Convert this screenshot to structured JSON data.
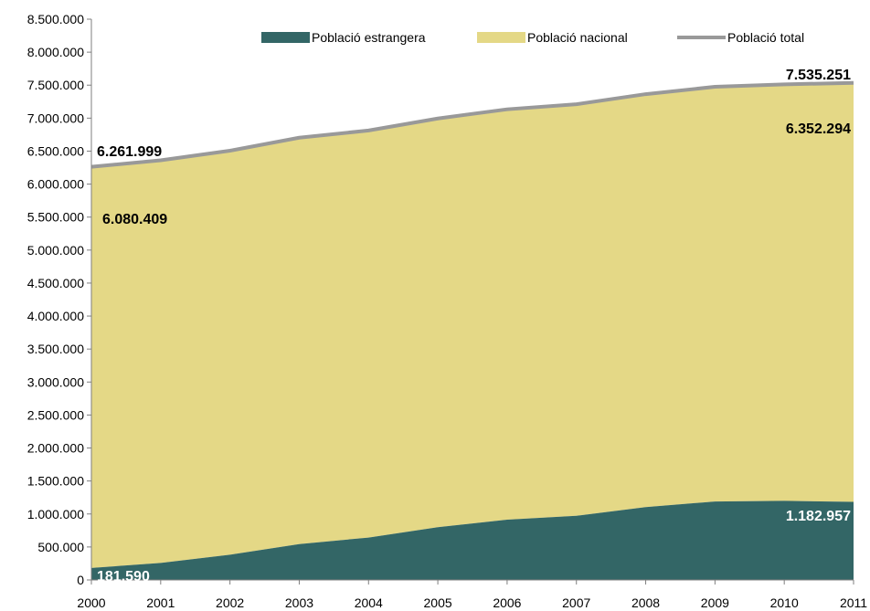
{
  "chart_data": {
    "type": "area",
    "x": [
      2000,
      2001,
      2002,
      2003,
      2004,
      2005,
      2006,
      2007,
      2008,
      2009,
      2010,
      2011
    ],
    "x_tick_labels": [
      "2000",
      "2001",
      "2002",
      "2003",
      "2004",
      "2005",
      "2006",
      "2007",
      "2008",
      "2009",
      "2010",
      "2011"
    ],
    "ylim": [
      0,
      8500000
    ],
    "y_ticks": [
      0,
      500000,
      1000000,
      1500000,
      2000000,
      2500000,
      3000000,
      3500000,
      4000000,
      4500000,
      5000000,
      5500000,
      6000000,
      6500000,
      7000000,
      7500000,
      8000000,
      8500000
    ],
    "y_tick_labels": [
      "0",
      "500.000",
      "1.000.000",
      "1.500.000",
      "2.000.000",
      "2.500.000",
      "3.000.000",
      "3.500.000",
      "4.000.000",
      "4.500.000",
      "5.000.000",
      "5.500.000",
      "6.000.000",
      "6.500.000",
      "7.000.000",
      "7.500.000",
      "8.000.000",
      "8.500.000"
    ],
    "series": [
      {
        "name": "Població estrangera",
        "color": "#336666",
        "values": [
          181590,
          257320,
          382020,
          543008,
          642846,
          798904,
          913757,
          972507,
          1103790,
          1189279,
          1198538,
          1182957
        ]
      },
      {
        "name": "Població nacional",
        "color": "#E4D886",
        "values": [
          6080409,
          6104340,
          6124300,
          6161000,
          6170000,
          6196000,
          6220000,
          6238000,
          6260000,
          6286000,
          6313000,
          6352294
        ]
      },
      {
        "name": "Població total",
        "color": "#999999",
        "values": [
          6261999,
          6361660,
          6506320,
          6704008,
          6812846,
          6994904,
          7133757,
          7210507,
          7363790,
          7475279,
          7511538,
          7535251
        ]
      }
    ],
    "legend_position": "top",
    "grid": false,
    "annotations": [
      {
        "text": "6.261.999",
        "series": "Població total",
        "x": 2000
      },
      {
        "text": "6.080.409",
        "series": "Població nacional",
        "x": 2000
      },
      {
        "text": "181.590",
        "series": "Població estrangera",
        "x": 2000
      },
      {
        "text": "7.535.251",
        "series": "Població total",
        "x": 2011
      },
      {
        "text": "6.352.294",
        "series": "Població nacional",
        "x": 2011
      },
      {
        "text": "1.182.957",
        "series": "Població estrangera",
        "x": 2011
      }
    ]
  }
}
